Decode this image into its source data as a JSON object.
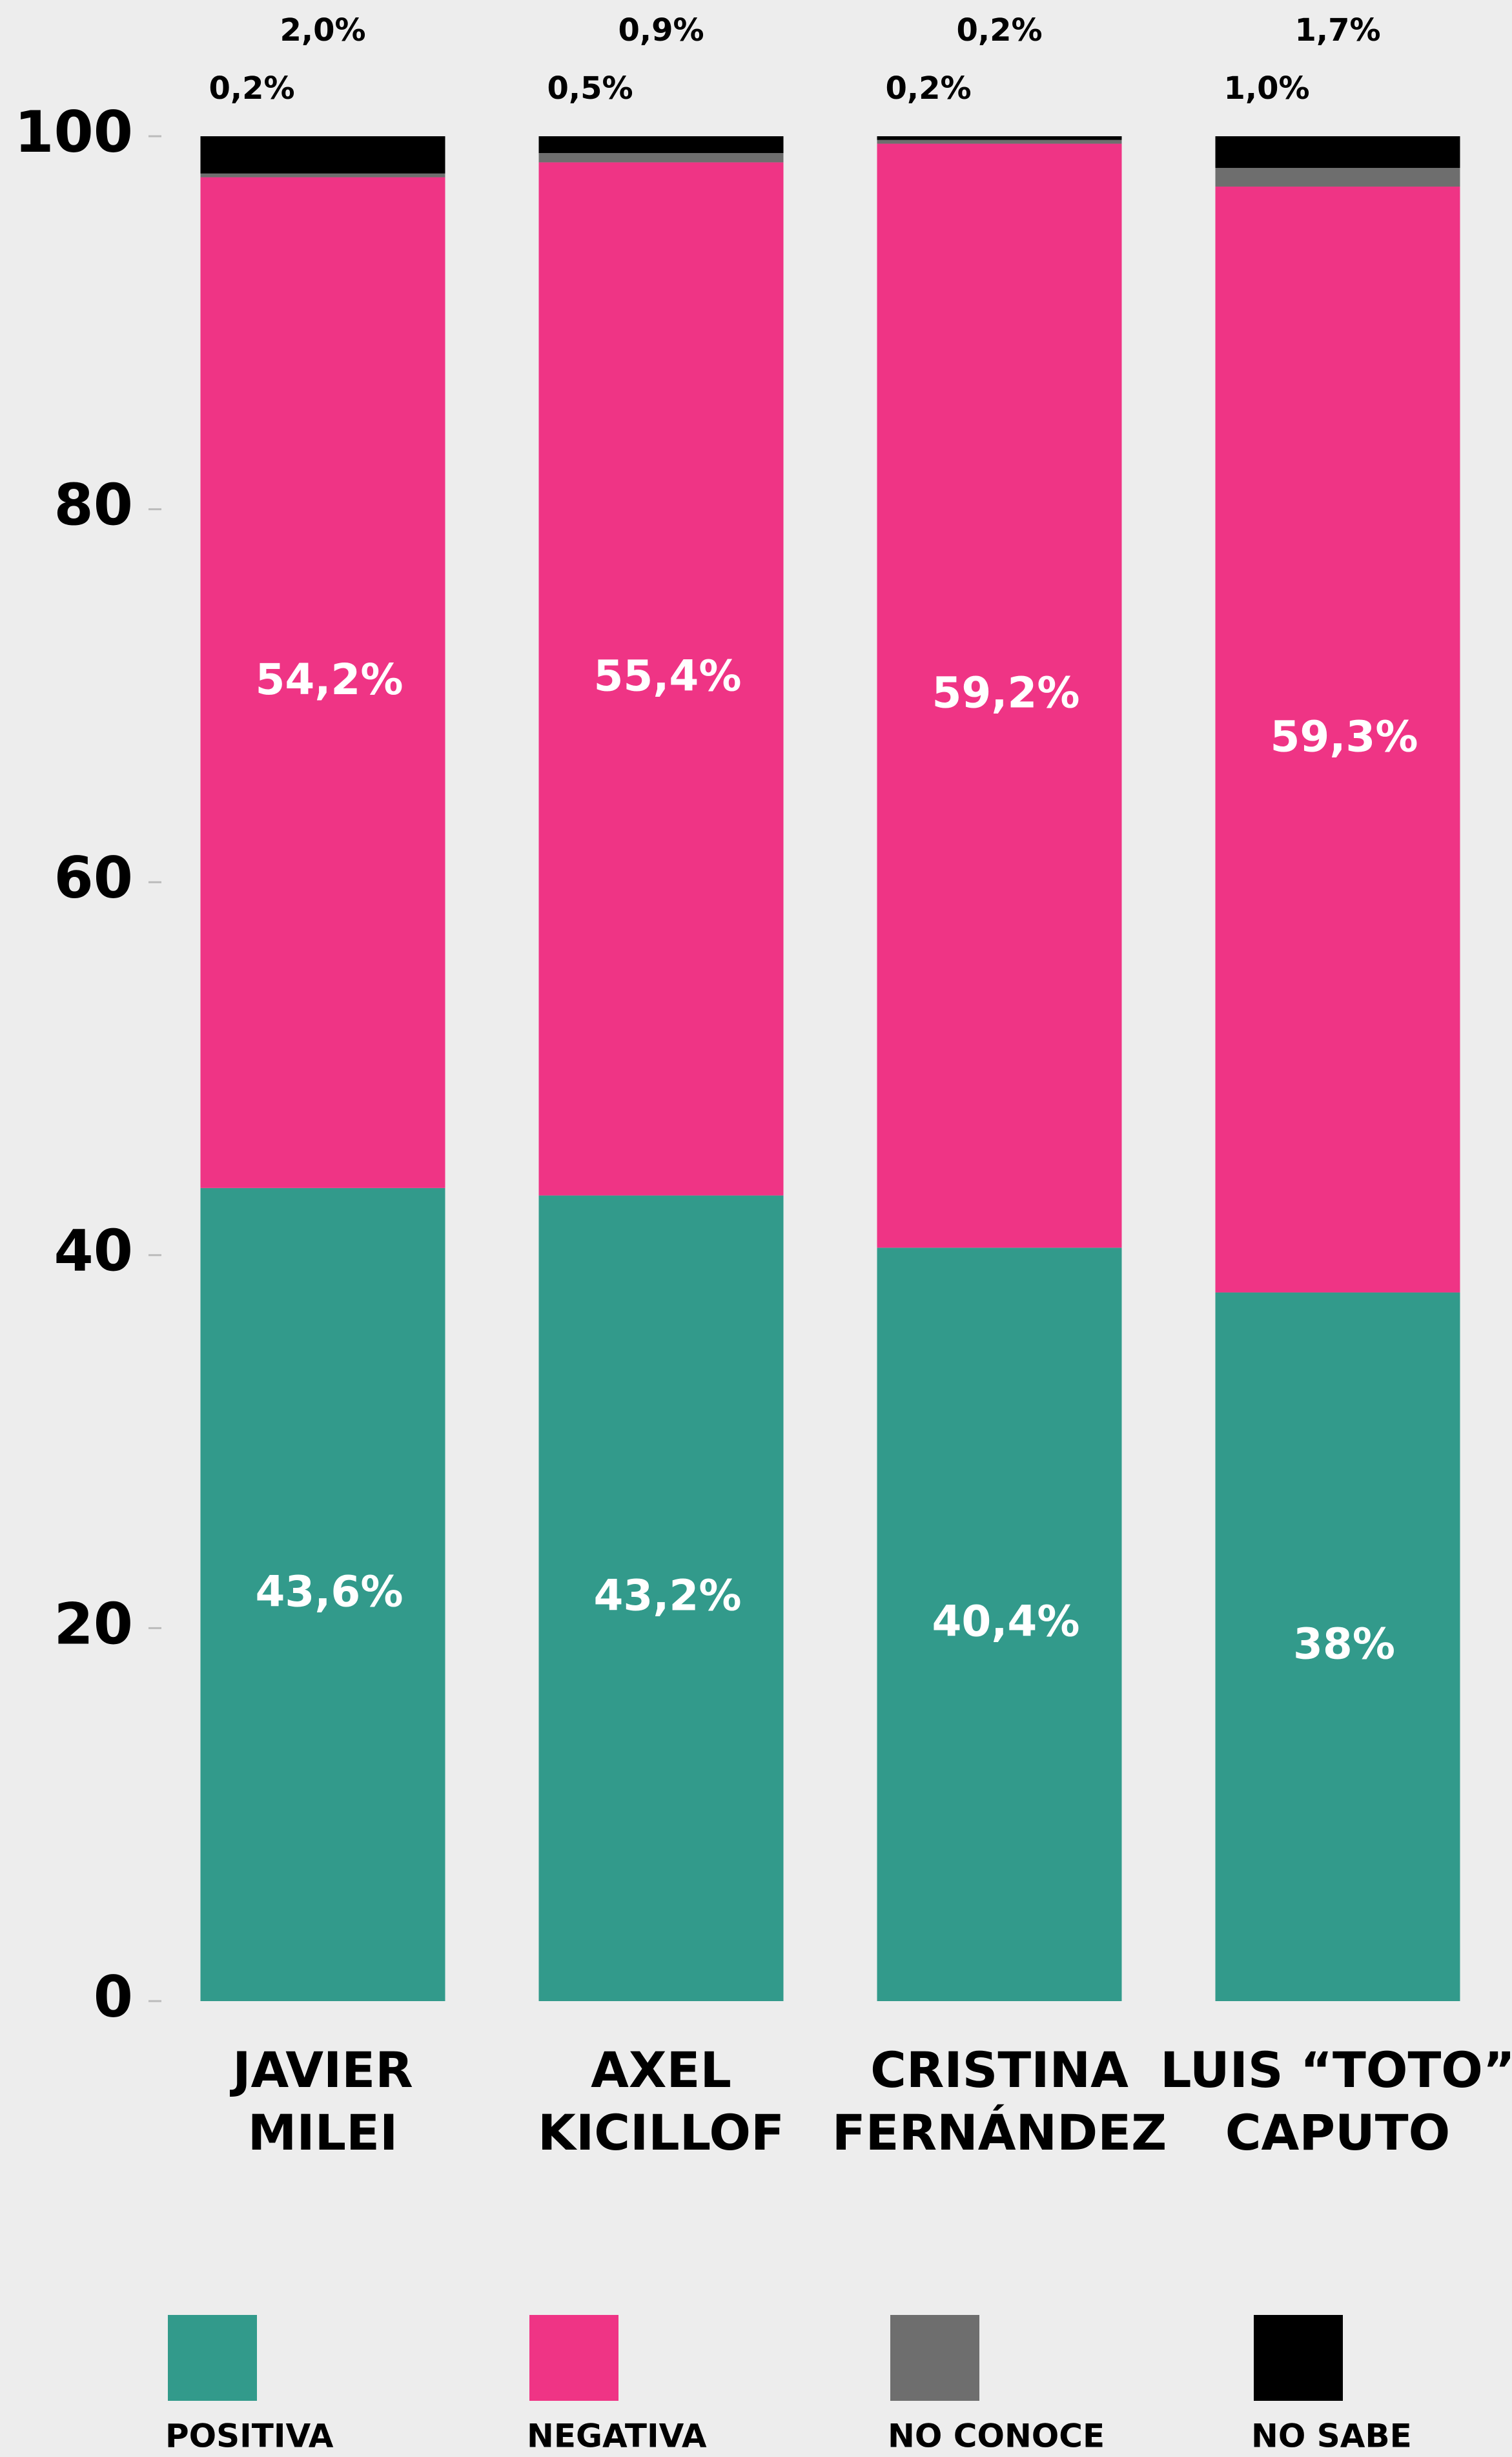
{
  "chart_data": {
    "type": "stacked_bar",
    "categories": [
      [
        "JAVIER",
        "MILEI"
      ],
      [
        "AXEL",
        "KICILLOF"
      ],
      [
        "CRISTINA",
        "FERNÁNDEZ"
      ],
      [
        "LUIS “TOTO”",
        "CAPUTO"
      ]
    ],
    "series": [
      {
        "name": "POSITIVA",
        "color": "#329a8b",
        "values": [
          43.6,
          43.2,
          40.4,
          38
        ],
        "value_labels": [
          "43,6%",
          "43,2%",
          "40,4%",
          "38%"
        ]
      },
      {
        "name": "NEGATIVA",
        "color": "#ef3485",
        "values": [
          54.2,
          55.4,
          59.2,
          59.3
        ],
        "value_labels": [
          "54,2%",
          "55,4%",
          "59,2%",
          "59,3%"
        ]
      },
      {
        "name": "NO CONOCE",
        "color": "#6e6e6e",
        "values": [
          0.2,
          0.5,
          0.2,
          1.0
        ],
        "value_labels": [
          "0,2%",
          "0,5%",
          "0,2%",
          "1,0%"
        ]
      },
      {
        "name": "NO SABE",
        "color": "#000000",
        "values": [
          2.0,
          0.9,
          0.2,
          1.7
        ],
        "value_labels": [
          "2,0%",
          "0,9%",
          "0,2%",
          "1,7%"
        ]
      }
    ],
    "ylim": [
      0,
      100
    ],
    "yticks": [
      0,
      20,
      40,
      60,
      80,
      100
    ],
    "grid": false,
    "legend": "bottom"
  }
}
